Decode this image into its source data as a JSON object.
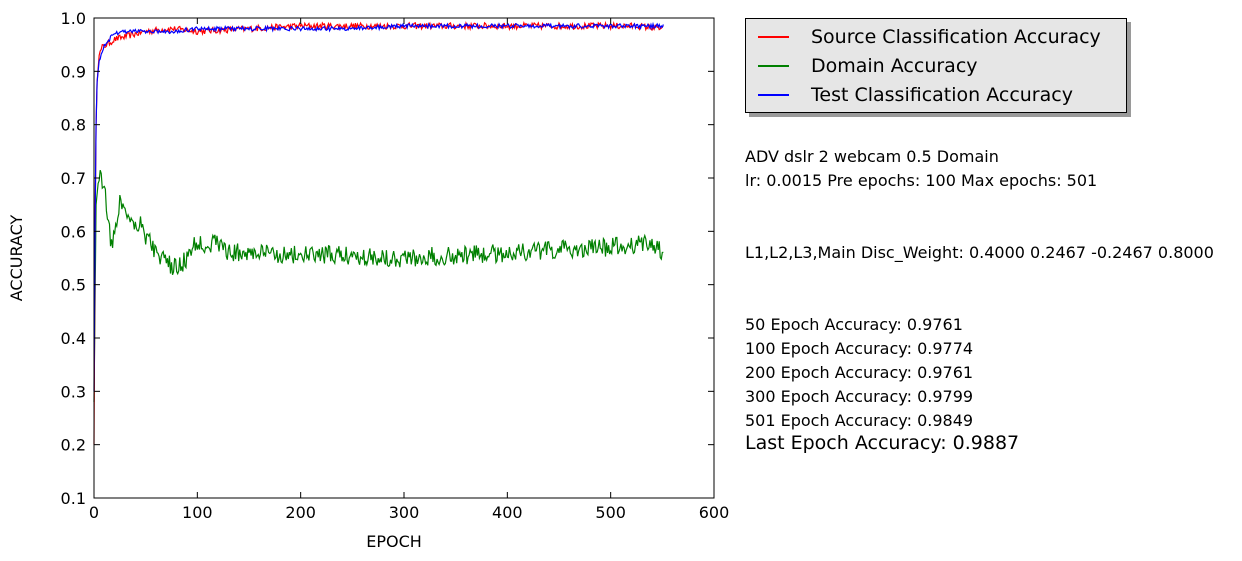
{
  "chart_data": {
    "type": "line",
    "xlabel": "EPOCH",
    "ylabel": "ACCURACY",
    "xlim": [
      0,
      600
    ],
    "ylim": [
      0.1,
      1.0
    ],
    "xticks": [
      0,
      100,
      200,
      300,
      400,
      500,
      600
    ],
    "yticks": [
      0.1,
      0.2,
      0.3,
      0.4,
      0.5,
      0.6,
      0.7,
      0.8,
      0.9,
      1.0
    ],
    "grid": false,
    "legend_position": "outside-right-top",
    "series": [
      {
        "name": "Source Classification Accuracy",
        "color": "#ff0000",
        "x": [
          0,
          1,
          2,
          3,
          5,
          8,
          12,
          20,
          30,
          50,
          75,
          100,
          150,
          200,
          250,
          300,
          350,
          400,
          450,
          500,
          525,
          551
        ],
        "y": [
          0.2,
          0.6,
          0.8,
          0.88,
          0.93,
          0.945,
          0.95,
          0.96,
          0.965,
          0.975,
          0.98,
          0.975,
          0.98,
          0.985,
          0.985,
          0.985,
          0.985,
          0.985,
          0.985,
          0.985,
          0.985,
          0.98
        ]
      },
      {
        "name": "Domain Accuracy",
        "color": "#008000",
        "x": [
          0,
          2,
          4,
          6,
          10,
          15,
          18,
          22,
          25,
          30,
          35,
          40,
          45,
          50,
          55,
          60,
          70,
          80,
          90,
          100,
          110,
          120,
          130,
          150,
          200,
          250,
          300,
          350,
          400,
          450,
          500,
          525,
          540,
          551
        ],
        "y": [
          0.28,
          0.65,
          0.69,
          0.7,
          0.69,
          0.6,
          0.57,
          0.62,
          0.66,
          0.64,
          0.63,
          0.61,
          0.62,
          0.59,
          0.58,
          0.56,
          0.54,
          0.53,
          0.55,
          0.58,
          0.575,
          0.58,
          0.56,
          0.56,
          0.555,
          0.555,
          0.55,
          0.555,
          0.56,
          0.565,
          0.57,
          0.575,
          0.58,
          0.56
        ]
      },
      {
        "name": "Test Classification Accuracy",
        "color": "#0000ff",
        "x": [
          0,
          1,
          2,
          3,
          5,
          8,
          12,
          20,
          30,
          50,
          75,
          100,
          150,
          200,
          250,
          300,
          350,
          400,
          450,
          500,
          525,
          551
        ],
        "y": [
          0.3,
          0.6,
          0.8,
          0.88,
          0.92,
          0.94,
          0.955,
          0.97,
          0.975,
          0.975,
          0.975,
          0.98,
          0.98,
          0.98,
          0.98,
          0.985,
          0.985,
          0.985,
          0.985,
          0.985,
          0.985,
          0.985
        ]
      }
    ]
  },
  "info": {
    "line1": "ADV dslr 2 webcam 0.5 Domain",
    "line2": "lr: 0.0015 Pre epochs: 100 Max epochs: 501",
    "line3": "L1,L2,L3,Main Disc_Weight: 0.4000 0.2467 -0.2467 0.8000",
    "acc50": "50 Epoch Accuracy: 0.9761",
    "acc100": "100 Epoch Accuracy: 0.9774",
    "acc200": "200 Epoch Accuracy: 0.9761",
    "acc300": "300 Epoch Accuracy: 0.9799",
    "acc501": "501 Epoch Accuracy: 0.9849",
    "last": "Last Epoch Accuracy: 0.9887"
  }
}
